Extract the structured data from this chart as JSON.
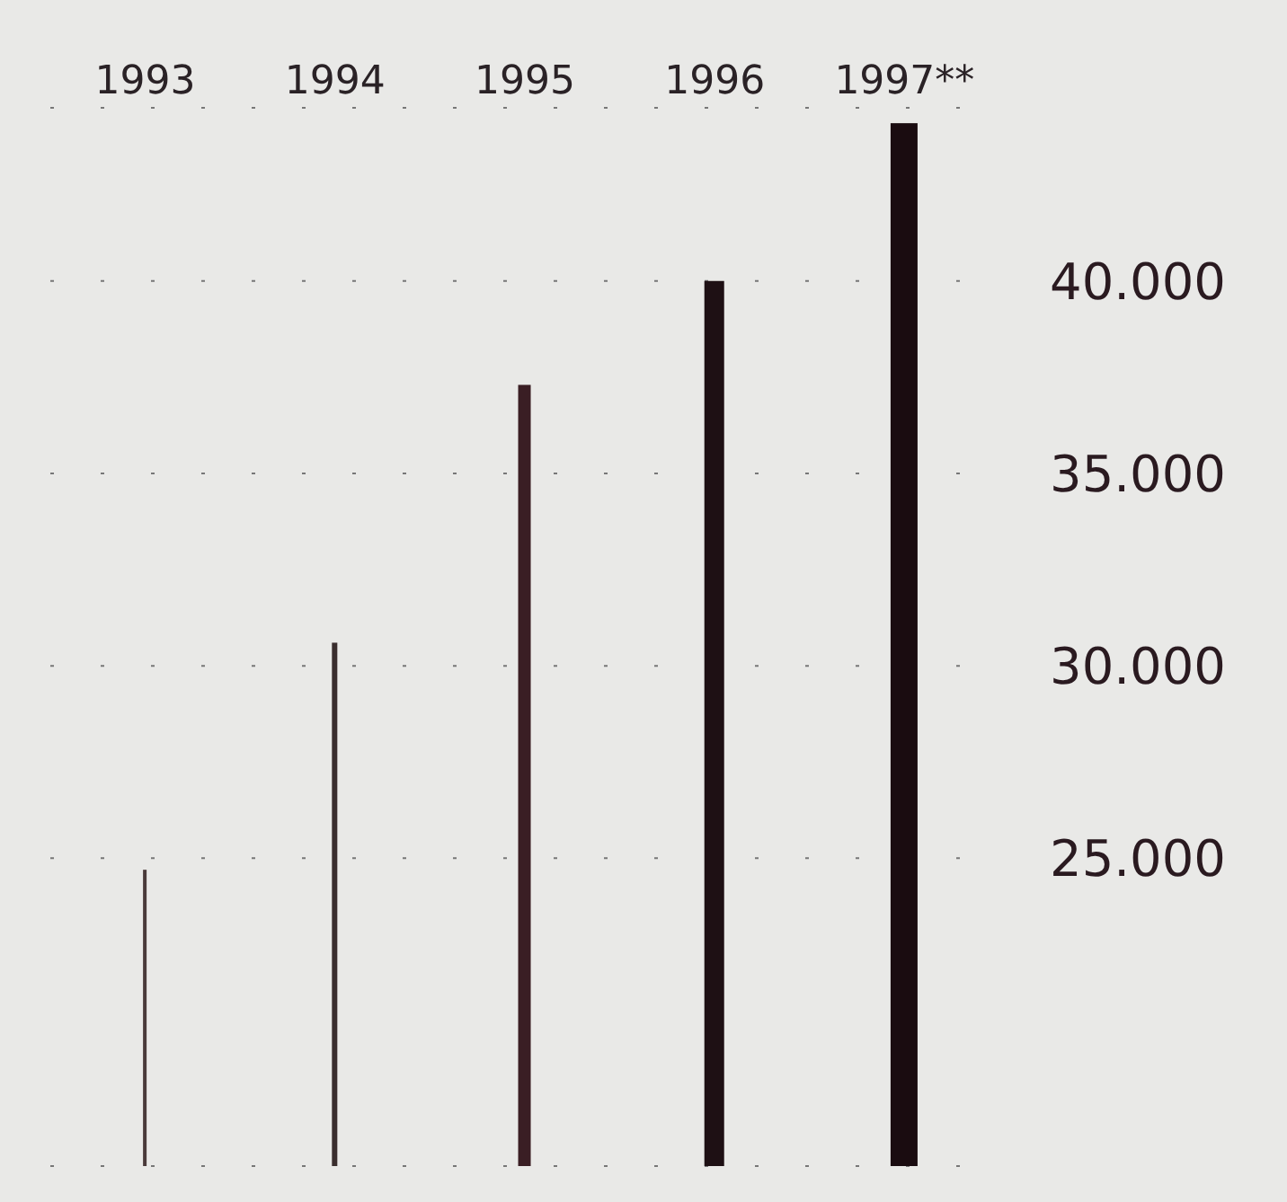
{
  "chart_data": {
    "type": "bar",
    "categories": [
      "1993",
      "1994",
      "1995",
      "1996",
      "1997**"
    ],
    "values": [
      24700,
      30600,
      37300,
      40000,
      44100
    ],
    "colors": [
      "#4a3a3a",
      "#3a2e2e",
      "#3a1e24",
      "#1e1014",
      "#1a0c10"
    ],
    "ylim": [
      17000,
      44500
    ],
    "yticks": [
      {
        "value": 25000,
        "label": "25.000"
      },
      {
        "value": 30000,
        "label": "30.000"
      },
      {
        "value": 35000,
        "label": "35.000"
      },
      {
        "value": 40000,
        "label": "40.000"
      }
    ],
    "grid": "y"
  }
}
